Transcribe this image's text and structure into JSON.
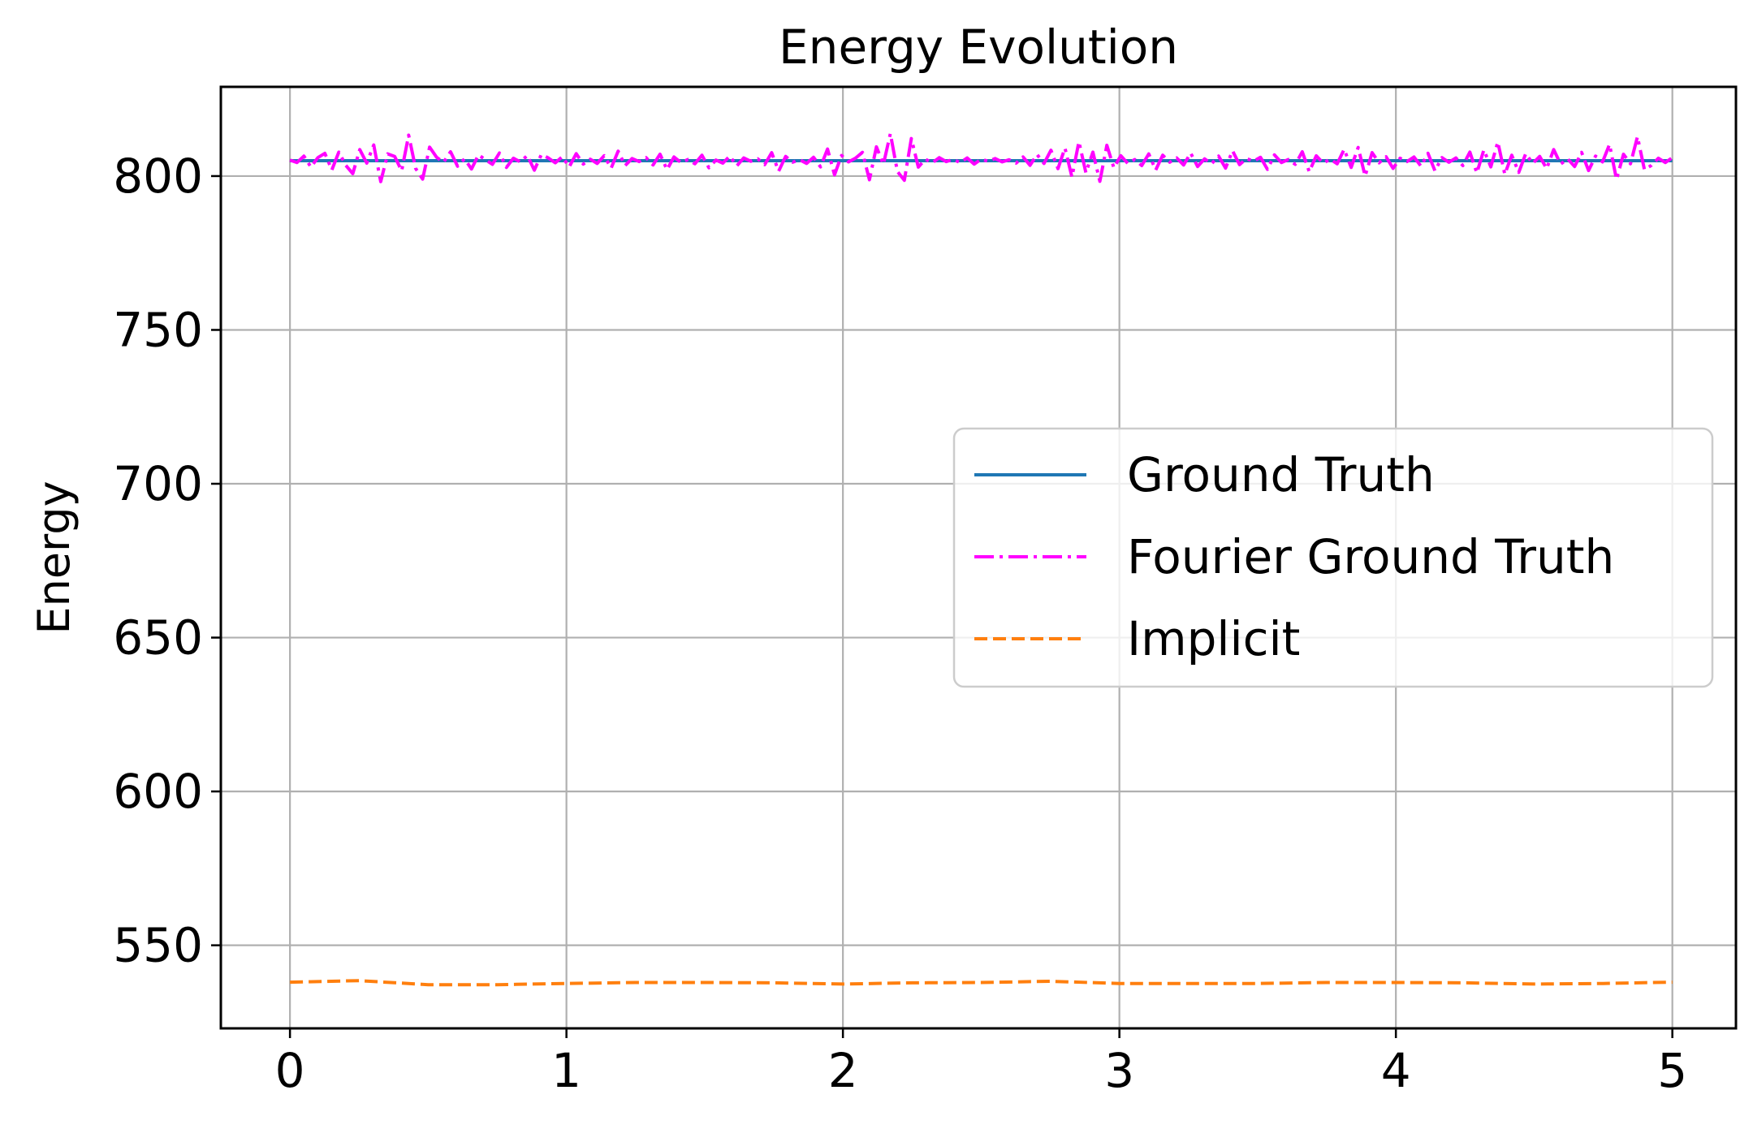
{
  "chart_data": {
    "type": "line",
    "title": "Energy Evolution",
    "xlabel": "",
    "ylabel": "Energy",
    "xlim": [
      -0.25,
      5.23
    ],
    "ylim": [
      523,
      829
    ],
    "xticks": [
      0,
      1,
      2,
      3,
      4,
      5
    ],
    "xtick_labels": [
      "0",
      "1",
      "2",
      "3",
      "4",
      "5"
    ],
    "yticks": [
      550,
      600,
      650,
      700,
      750,
      800
    ],
    "ytick_labels": [
      "550",
      "600",
      "650",
      "700",
      "750",
      "800"
    ],
    "grid": true,
    "legend_position": "center-right",
    "series": [
      {
        "name": "Ground Truth",
        "color": "#1f77b4",
        "style": "solid",
        "x": [
          0,
          5
        ],
        "y": [
          805,
          805
        ]
      },
      {
        "name": "Fourier Ground Truth",
        "color": "#ff00ff",
        "style": "dashdot",
        "x_range": [
          0,
          5
        ],
        "mean": 805,
        "noise_samples": [
          0.2,
          -0.6,
          1.5,
          -2.1,
          1.0,
          2.4,
          -3.0,
          2.8,
          -1.5,
          -4.2,
          3.6,
          -0.8,
          5.1,
          -6.8,
          2.2,
          1.4,
          -3.3,
          8.3,
          -2.5,
          -6.0,
          4.4,
          1.1,
          -0.5,
          2.9,
          -1.8,
          0.6,
          -2.7,
          1.9,
          0.3,
          -1.2,
          2.5,
          -2.2,
          0.8,
          -0.4,
          1.7,
          -3.1,
          2.0,
          0.9,
          -0.7,
          1.3,
          -2.0,
          2.3,
          -1.1,
          0.5,
          -0.9,
          1.6,
          -2.4,
          3.1,
          -1.6,
          0.7,
          -0.3,
          1.0,
          -1.4,
          2.1,
          -2.9,
          1.2,
          -0.6,
          0.4,
          -1.0,
          1.8,
          -2.3,
          0.2,
          -0.8,
          1.5,
          -1.7,
          0.9,
          -0.2,
          0.6,
          -1.3,
          2.6,
          -3.4,
          1.4,
          -0.5,
          0.3,
          -0.9,
          1.1,
          -2.0,
          3.8,
          -4.6,
          1.7,
          -0.4,
          0.8,
          2.7,
          -6.2,
          4.5,
          -1.2,
          8.8,
          -3.5,
          -6.4,
          7.2,
          -2.1,
          0.5,
          -0.7,
          1.0,
          -0.3,
          0.4,
          -0.6,
          0.9,
          -1.1,
          0.5,
          -0.2,
          0.7,
          -0.4,
          0.3,
          -0.8,
          1.2,
          -1.5,
          2.0,
          -0.9,
          3.4,
          -2.6,
          4.1,
          -5.3,
          6.2,
          -3.9,
          2.8,
          -6.7,
          5.0,
          -2.3,
          1.6,
          -0.9,
          0.4,
          -1.6,
          2.2,
          -3.0,
          1.8,
          -0.5,
          0.9,
          -1.4,
          2.5,
          -1.9,
          0.6,
          -1.0,
          1.5,
          -2.4,
          3.2,
          -1.3,
          0.7,
          -0.2,
          1.1,
          -2.8,
          1.9,
          -0.6,
          0.4,
          -1.2,
          2.9,
          -3.6,
          1.6,
          -0.8,
          0.5,
          -1.0,
          3.7,
          -2.2,
          4.3,
          -5.0,
          2.6,
          -0.7,
          1.3,
          -2.5,
          0.8,
          -0.3,
          1.2,
          -1.8,
          2.4,
          -3.3,
          1.0,
          -0.5,
          0.9,
          -1.6,
          2.8,
          -4.0,
          3.5,
          -2.0,
          6.1,
          -4.4,
          1.8,
          -3.8,
          2.3,
          -0.9,
          1.4,
          -2.6,
          3.6,
          -1.1,
          0.6,
          -1.9,
          2.7,
          -3.2,
          1.5,
          -0.4,
          5.3,
          -6.1,
          2.1,
          -1.0,
          7.8,
          -2.9,
          -1.5,
          0.8,
          -0.6,
          1.0
        ]
      },
      {
        "name": "Implicit",
        "color": "#ff7f0e",
        "style": "dashed",
        "x": [
          0,
          0.25,
          0.5,
          0.75,
          1.0,
          1.25,
          1.5,
          1.75,
          2.0,
          2.25,
          2.5,
          2.75,
          3.0,
          3.25,
          3.5,
          3.75,
          4.0,
          4.25,
          4.5,
          4.75,
          5.0
        ],
        "y": [
          538.0,
          538.5,
          537.2,
          537.2,
          537.6,
          537.9,
          537.9,
          537.8,
          537.4,
          537.8,
          537.9,
          538.3,
          537.6,
          537.6,
          537.6,
          537.9,
          537.9,
          537.8,
          537.4,
          537.6,
          538.0
        ]
      }
    ]
  }
}
